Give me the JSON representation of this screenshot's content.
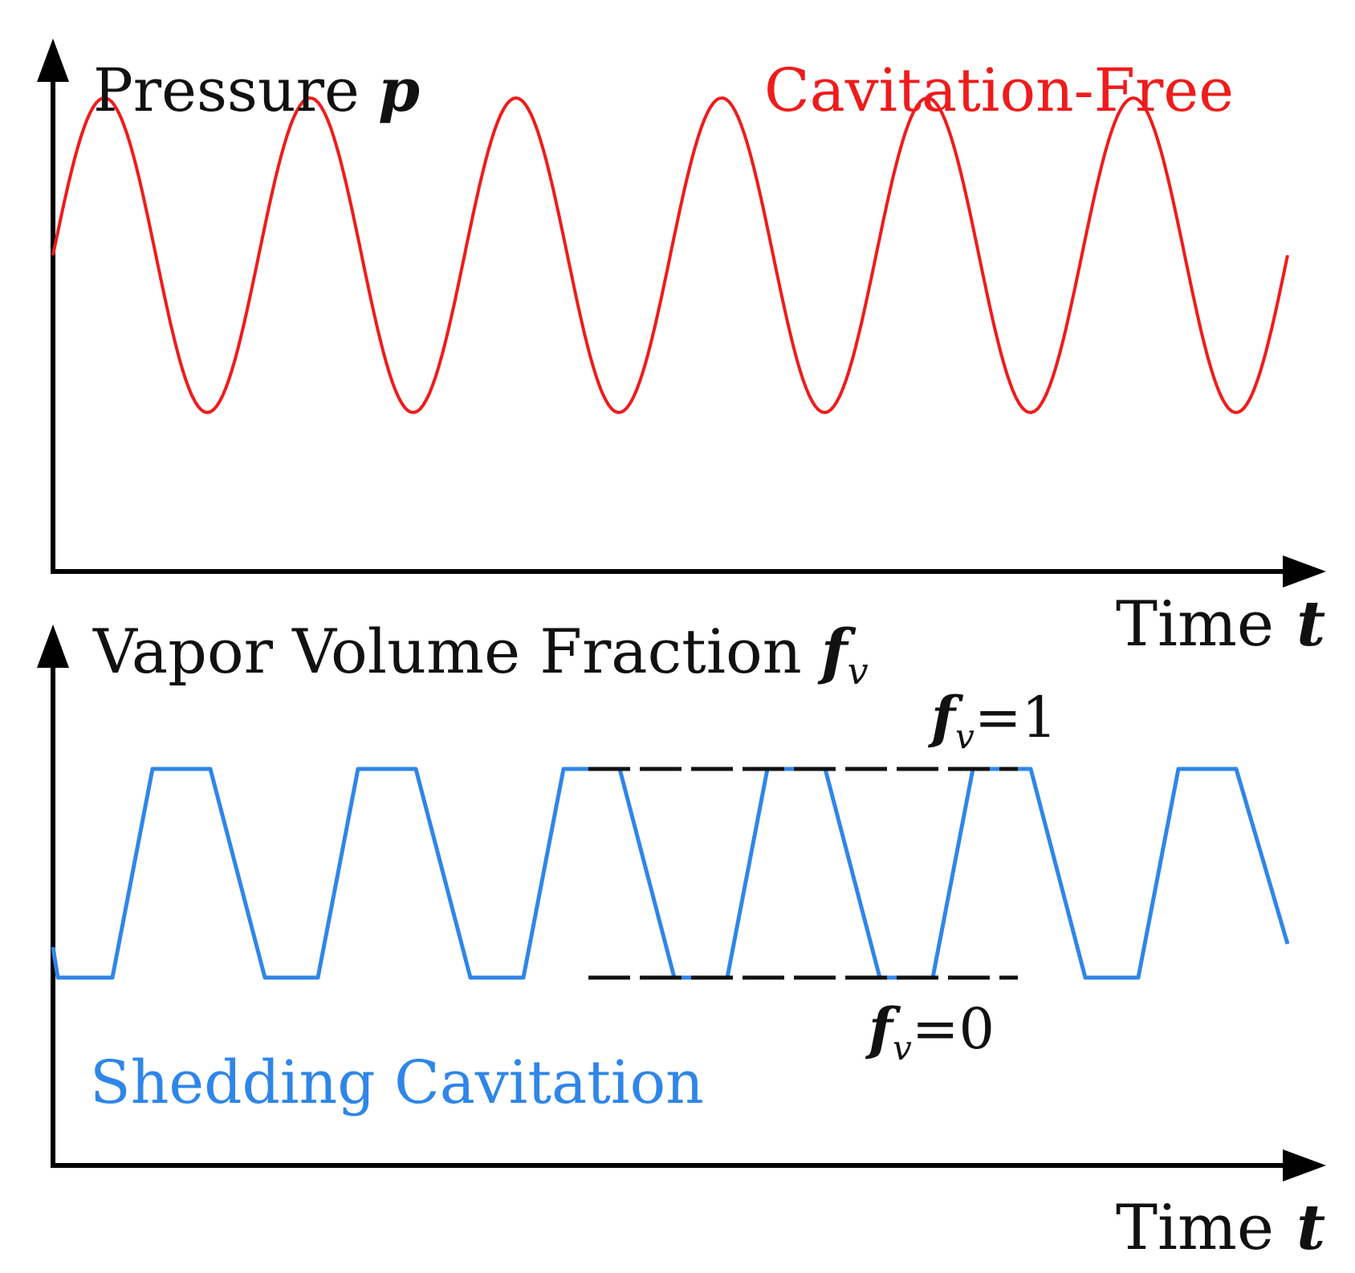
{
  "colors": {
    "axis": "#000000",
    "pressure": "#ee1c1c",
    "vapor": "#2f86e8",
    "dash": "#111111",
    "text": "#111111"
  },
  "top_panel": {
    "ylabel_text": "Pressure ",
    "ylabel_var": "p",
    "xlabel_text": "Time",
    "xlabel_var": "t",
    "case_label": "Cavitation-Free",
    "signal": {
      "shape": "sine",
      "cycles": 6,
      "start_phase": "midline",
      "end_phase": "midline"
    }
  },
  "bottom_panel": {
    "ylabel_text": "Vapor Volume Fraction ",
    "ylabel_var": "f",
    "ylabel_sub": "v",
    "xlabel_text": "Time",
    "xlabel_var": "t",
    "case_label": "Shedding Cavitation",
    "signal": {
      "shape": "trapezoid",
      "low_value": 0,
      "high_value": 1,
      "cycles": 6
    },
    "reference_lines": [
      {
        "var": "f",
        "sub": "v",
        "text": "=1",
        "value": 1
      },
      {
        "var": "f",
        "sub": "v",
        "text": "=0",
        "value": 0
      }
    ]
  }
}
